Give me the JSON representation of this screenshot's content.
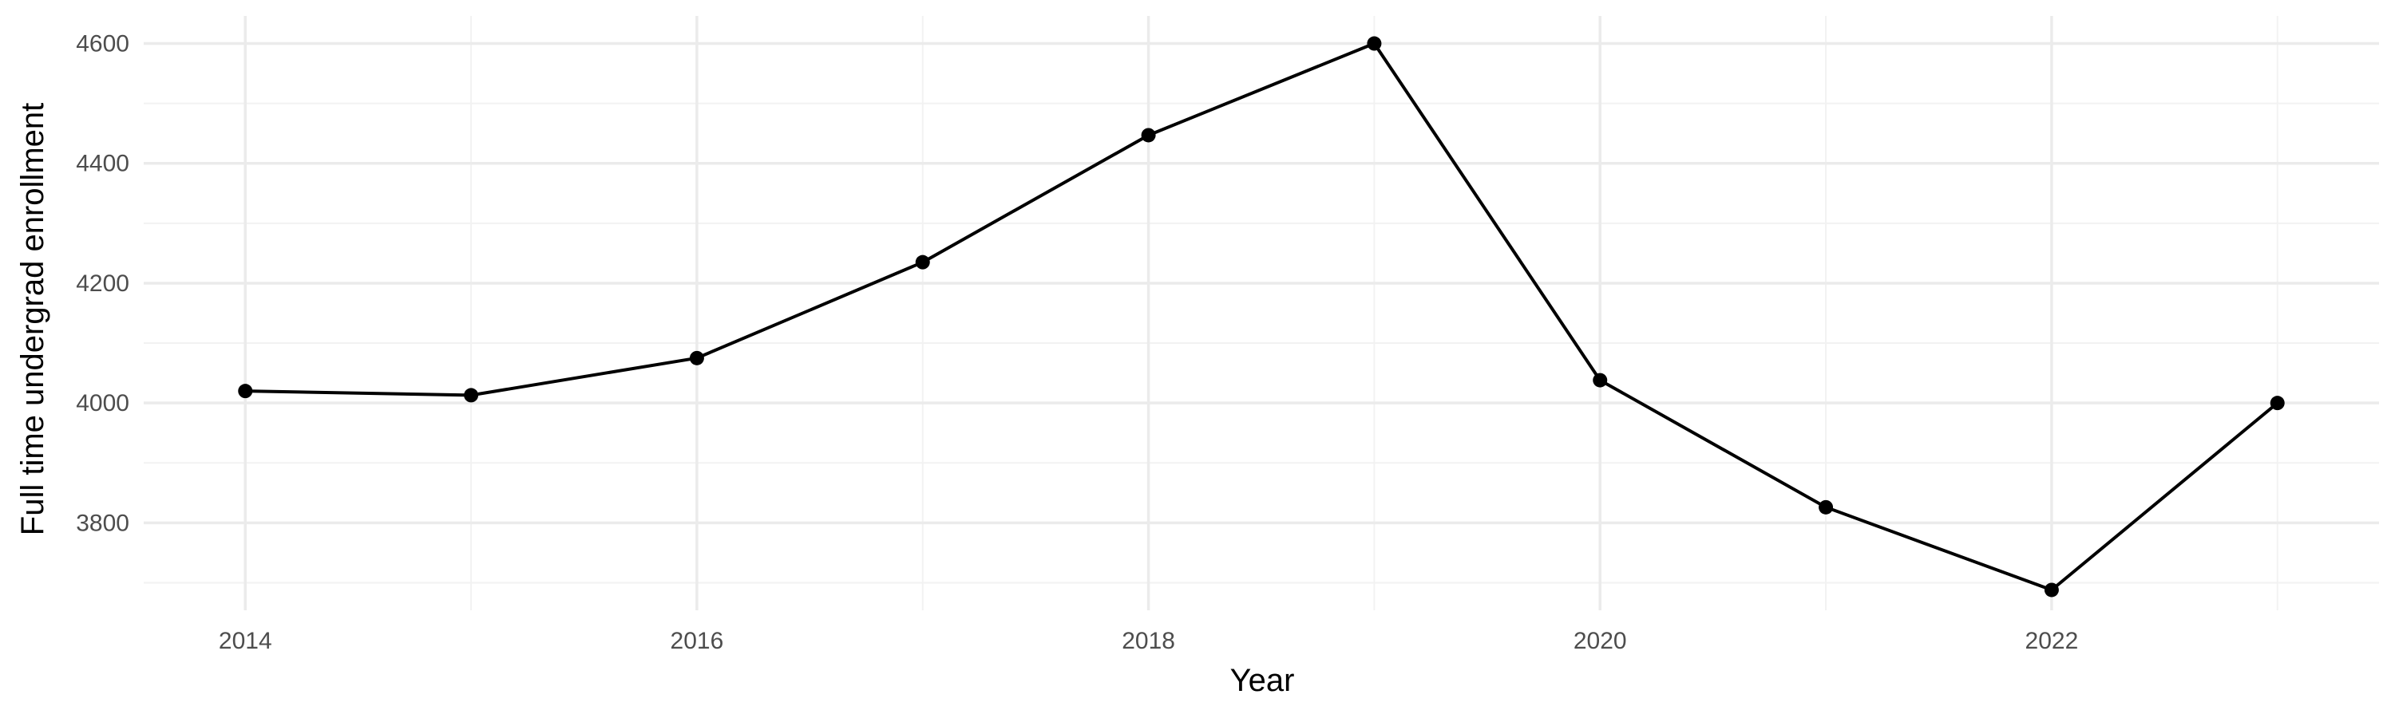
{
  "chart_data": {
    "type": "line",
    "title": "",
    "xlabel": "Year",
    "ylabel": "Full time undergrad enrollment",
    "x": [
      2014,
      2015,
      2016,
      2017,
      2018,
      2019,
      2020,
      2021,
      2022,
      2023
    ],
    "series": [
      {
        "values": [
          4020,
          4013,
          4075,
          4235,
          4447,
          4600,
          4038,
          3826,
          3688,
          4000
        ]
      }
    ],
    "xlim": [
      2013.55,
      2023.45
    ],
    "ylim": [
      3654,
      4646
    ],
    "x_ticks": [
      2014,
      2016,
      2018,
      2020,
      2022
    ],
    "x_tick_labels": [
      "2014",
      "2016",
      "2018",
      "2020",
      "2022"
    ],
    "y_ticks": [
      3800,
      4000,
      4200,
      4400,
      4600
    ],
    "y_tick_labels": [
      "3800",
      "4000",
      "4200",
      "4400",
      "4600"
    ],
    "grid": true,
    "legend": "none",
    "colors": {
      "line": "#000000",
      "point": "#000000",
      "grid_major": "#ebebeb",
      "grid_minor": "#f2f2f2",
      "tick_text": "#4d4d4d",
      "title_text": "#000000"
    }
  }
}
